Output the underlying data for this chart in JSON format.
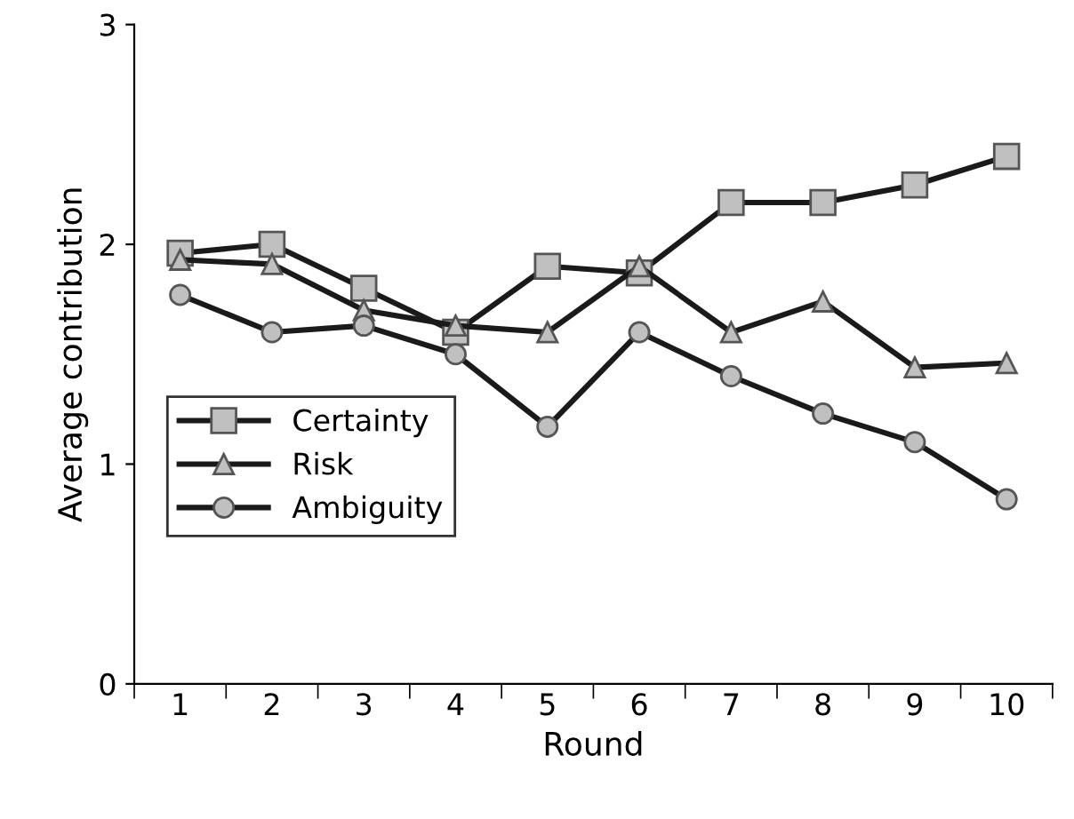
{
  "chart_data": {
    "type": "line",
    "xlabel": "Round",
    "ylabel": "Average contribution",
    "categories": [
      "1",
      "2",
      "3",
      "4",
      "5",
      "6",
      "7",
      "8",
      "9",
      "10"
    ],
    "ylim": [
      0,
      3
    ],
    "yticks": [
      0,
      1,
      2,
      3
    ],
    "grid": false,
    "legend": "center left",
    "line_style": "solid",
    "series": [
      {
        "name": "Certainty",
        "color": "#1a1a1a",
        "marker": "square",
        "values": [
          1.96,
          2.0,
          1.8,
          1.6,
          1.9,
          1.87,
          2.19,
          2.19,
          2.27,
          2.4
        ]
      },
      {
        "name": "Risk",
        "color": "#1a1a1a",
        "marker": "triangle",
        "values": [
          1.93,
          1.91,
          1.7,
          1.63,
          1.6,
          1.9,
          1.6,
          1.74,
          1.44,
          1.46
        ]
      },
      {
        "name": "Ambiguity",
        "color": "#1a1a1a",
        "marker": "circle",
        "values": [
          1.77,
          1.6,
          1.63,
          1.5,
          1.17,
          1.6,
          1.4,
          1.23,
          1.1,
          0.84
        ]
      }
    ]
  }
}
